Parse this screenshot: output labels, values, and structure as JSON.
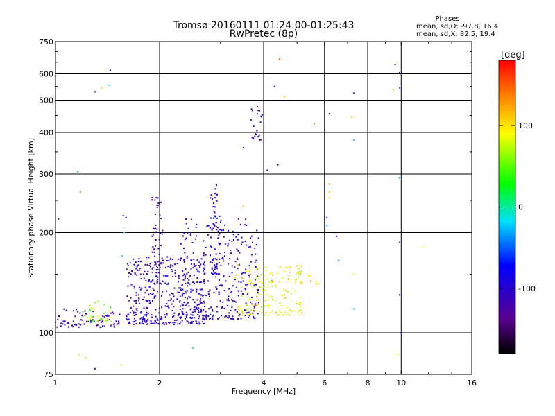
{
  "title": "Tromsø 20160111 01:24:00-01:25:43",
  "subtitle": "RwPretec (8p)",
  "phase_stats": {
    "heading": "Phases",
    "line_o": "mean, sd,O: -97.8, 16.4",
    "line_x": "mean, sd,X: 82.5, 19.4"
  },
  "colorbar": {
    "label": "[deg]",
    "ticks": [
      "100",
      "0",
      "-100"
    ],
    "tick_values": [
      100,
      0,
      -100
    ],
    "range": [
      -180,
      180
    ]
  },
  "chart_data": {
    "type": "scatter",
    "xlabel": "Frequency [MHz]",
    "ylabel": "Stationary phase Virtual Height [km]",
    "xscale": "log",
    "yscale": "log",
    "xlim": [
      1,
      16
    ],
    "ylim": [
      75,
      750
    ],
    "xticks": [
      1,
      2,
      4,
      6,
      8,
      10,
      16
    ],
    "xtick_labels": [
      "1",
      "2",
      "4",
      "6",
      "8",
      "10",
      "16"
    ],
    "xgrid": [
      2,
      4,
      6,
      8,
      10
    ],
    "yticks": [
      75,
      100,
      200,
      300,
      400,
      500,
      600,
      750
    ],
    "ytick_labels": [
      "75",
      "100",
      "200",
      "300",
      "400",
      "500",
      "600",
      "750"
    ],
    "ygrid": [
      100,
      200,
      300,
      400,
      500,
      600
    ],
    "colormap": "rainbow",
    "clusters": [
      {
        "name": "o-low",
        "fmin": 1.0,
        "fmax": 1.55,
        "hmin": 104,
        "hmax": 118,
        "n": 80,
        "phase": -110
      },
      {
        "name": "o-dense-1",
        "fmin": 1.6,
        "fmax": 2.7,
        "hmin": 106,
        "hmax": 170,
        "n": 380,
        "phase": -105
      },
      {
        "name": "o-dense-2",
        "fmin": 2.3,
        "fmax": 3.9,
        "hmin": 110,
        "hmax": 220,
        "n": 330,
        "phase": -100
      },
      {
        "name": "o-column-2",
        "fmin": 1.9,
        "fmax": 2.05,
        "hmin": 140,
        "hmax": 255,
        "n": 60,
        "phase": -115
      },
      {
        "name": "o-column-3",
        "fmin": 2.8,
        "fmax": 3.0,
        "hmin": 150,
        "hmax": 280,
        "n": 60,
        "phase": -95
      },
      {
        "name": "o-high",
        "fmin": 3.65,
        "fmax": 4.0,
        "hmin": 380,
        "hmax": 480,
        "n": 25,
        "phase": -110
      },
      {
        "name": "x-green",
        "fmin": 1.2,
        "fmax": 1.45,
        "hmin": 108,
        "hmax": 125,
        "n": 30,
        "phase": 60
      },
      {
        "name": "x-yellow",
        "fmin": 3.3,
        "fmax": 5.2,
        "hmin": 113,
        "hmax": 160,
        "n": 150,
        "phase": 90
      },
      {
        "name": "x-orange",
        "fmin": 3.6,
        "fmax": 5.8,
        "hmin": 140,
        "hmax": 160,
        "n": 25,
        "phase": 110
      }
    ],
    "points": [
      {
        "x": 1.44,
        "y": 615,
        "p": -90
      },
      {
        "x": 1.43,
        "y": 555,
        "p": -10
      },
      {
        "x": 1.36,
        "y": 545,
        "p": 110
      },
      {
        "x": 1.3,
        "y": 530,
        "p": -130
      },
      {
        "x": 1.16,
        "y": 305,
        "p": -30
      },
      {
        "x": 1.18,
        "y": 265,
        "p": 140
      },
      {
        "x": 1.02,
        "y": 220,
        "p": -100
      },
      {
        "x": 1.57,
        "y": 225,
        "p": -90
      },
      {
        "x": 1.6,
        "y": 222,
        "p": -80
      },
      {
        "x": 4.45,
        "y": 665,
        "p": 150
      },
      {
        "x": 4.4,
        "y": 320,
        "p": -120
      },
      {
        "x": 4.1,
        "y": 308,
        "p": -120
      },
      {
        "x": 4.3,
        "y": 550,
        "p": -70
      },
      {
        "x": 4.6,
        "y": 512,
        "p": 110
      },
      {
        "x": 5.6,
        "y": 425,
        "p": 150
      },
      {
        "x": 6.2,
        "y": 455,
        "p": -110
      },
      {
        "x": 7.2,
        "y": 445,
        "p": 110
      },
      {
        "x": 7.3,
        "y": 380,
        "p": -30
      },
      {
        "x": 7.3,
        "y": 525,
        "p": -130
      },
      {
        "x": 6.2,
        "y": 280,
        "p": 140
      },
      {
        "x": 6.2,
        "y": 265,
        "p": 110
      },
      {
        "x": 6.2,
        "y": 255,
        "p": 100
      },
      {
        "x": 6.1,
        "y": 222,
        "p": -120
      },
      {
        "x": 6.1,
        "y": 210,
        "p": -30
      },
      {
        "x": 6.5,
        "y": 195,
        "p": -80
      },
      {
        "x": 6.6,
        "y": 165,
        "p": -40
      },
      {
        "x": 7.3,
        "y": 150,
        "p": 90
      },
      {
        "x": 7.3,
        "y": 118,
        "p": -20
      },
      {
        "x": 9.6,
        "y": 640,
        "p": -130
      },
      {
        "x": 9.9,
        "y": 605,
        "p": -90
      },
      {
        "x": 9.5,
        "y": 538,
        "p": 110
      },
      {
        "x": 9.9,
        "y": 545,
        "p": -60
      },
      {
        "x": 9.9,
        "y": 292,
        "p": -30
      },
      {
        "x": 9.9,
        "y": 187,
        "p": -120
      },
      {
        "x": 9.9,
        "y": 130,
        "p": -100
      },
      {
        "x": 10.0,
        "y": 100,
        "p": -90
      },
      {
        "x": 9.8,
        "y": 86,
        "p": 90
      },
      {
        "x": 11.5,
        "y": 181,
        "p": 90
      },
      {
        "x": 2.5,
        "y": 90,
        "p": -20
      },
      {
        "x": 1.55,
        "y": 80,
        "p": 70
      },
      {
        "x": 1.3,
        "y": 78,
        "p": -110
      },
      {
        "x": 1.22,
        "y": 84,
        "p": 60
      },
      {
        "x": 1.17,
        "y": 86,
        "p": 70
      },
      {
        "x": 1.58,
        "y": 200,
        "p": -20
      },
      {
        "x": 1.56,
        "y": 170,
        "p": -30
      },
      {
        "x": 3.5,
        "y": 360,
        "p": -90
      },
      {
        "x": 3.5,
        "y": 240,
        "p": 120
      }
    ]
  }
}
